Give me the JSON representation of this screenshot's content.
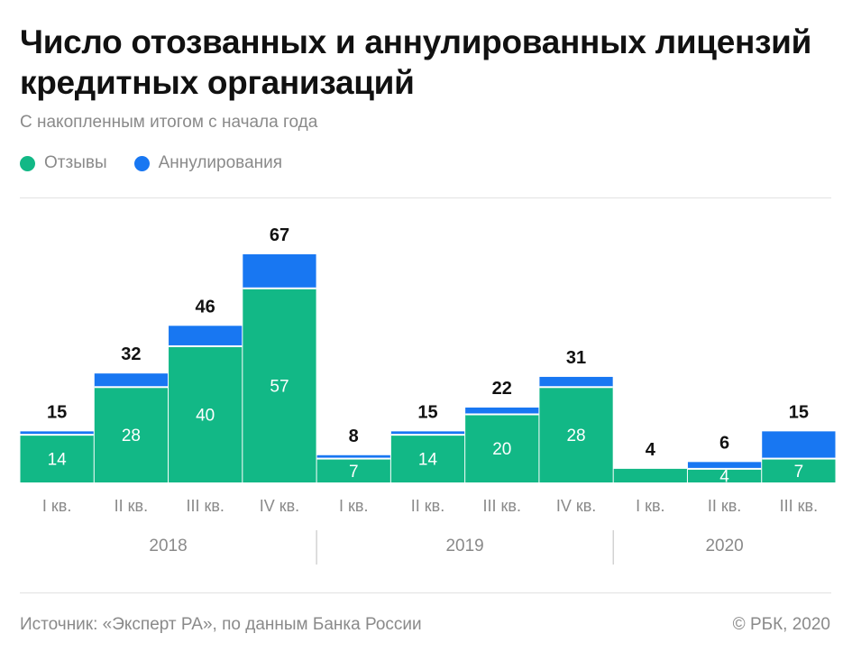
{
  "title": "Число отозванных и аннулированных лицензий кредитных организаций",
  "subtitle": "С накопленным итогом с начала года",
  "legend": [
    {
      "label": "Отзывы",
      "color": "#12b886"
    },
    {
      "label": "Аннулирования",
      "color": "#1877f2"
    }
  ],
  "footer": {
    "source": "Источник: «Эксперт РА», по данным Банка России",
    "copyright": "© РБК, 2020"
  },
  "chart_data": {
    "type": "bar",
    "stacked": true,
    "categories": [
      "I кв.",
      "II кв.",
      "III кв.",
      "IV кв.",
      "I кв.",
      "II кв.",
      "III кв.",
      "IV кв.",
      "I кв.",
      "II кв.",
      "III кв."
    ],
    "groups": [
      {
        "label": "2018",
        "count": 4
      },
      {
        "label": "2019",
        "count": 4
      },
      {
        "label": "2020",
        "count": 3
      }
    ],
    "series": [
      {
        "name": "Отзывы",
        "color": "#12b886",
        "values": [
          14,
          28,
          40,
          57,
          7,
          14,
          20,
          28,
          4,
          4,
          7
        ],
        "label_values": [
          "14",
          "28",
          "40",
          "57",
          "7",
          "14",
          "20",
          "28",
          "",
          "4",
          "7"
        ]
      },
      {
        "name": "Аннулирования",
        "color": "#1877f2",
        "values": [
          1,
          4,
          6,
          10,
          1,
          1,
          2,
          3,
          0,
          2,
          8
        ]
      }
    ],
    "totals": [
      15,
      32,
      46,
      67,
      8,
      15,
      22,
      31,
      4,
      6,
      15
    ],
    "ylim": [
      0,
      67
    ],
    "grid": false,
    "legend_position": "top-left"
  }
}
